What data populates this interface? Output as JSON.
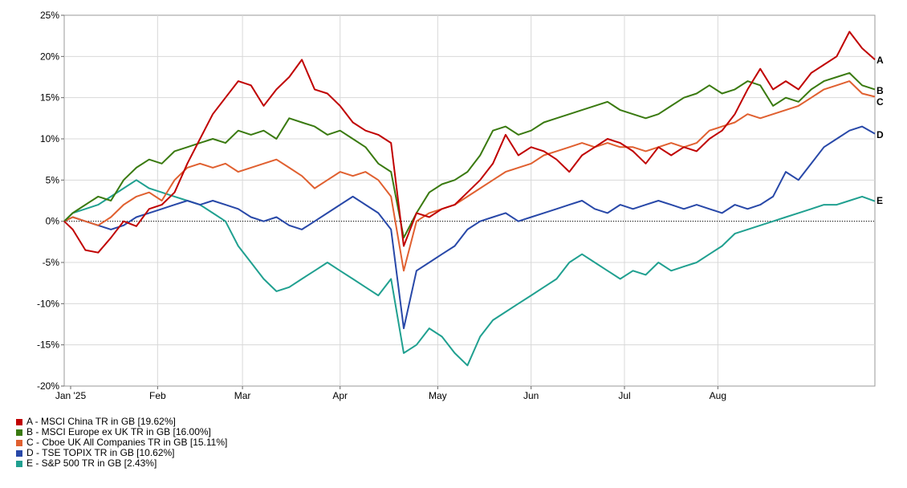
{
  "chart_data": {
    "type": "line",
    "title": "",
    "xlabel": "",
    "ylabel": "",
    "ylim": [
      -20,
      25
    ],
    "y_ticks": [
      "25%",
      "20%",
      "15%",
      "10%",
      "5%",
      "0%",
      "-5%",
      "-10%",
      "-15%",
      "-20%"
    ],
    "x_months": [
      "Jan '25",
      "Feb",
      "Mar",
      "Apr",
      "May",
      "Jun",
      "Jul",
      "Aug"
    ],
    "grid": true,
    "legend_position": "bottom-left",
    "series": [
      {
        "label": "A",
        "legend": "A - MSCI China TR in GB [19.62%]",
        "color": "#c00000",
        "points": [
          [
            0,
            0
          ],
          [
            2,
            -1
          ],
          [
            5,
            -3.5
          ],
          [
            8,
            -3.8
          ],
          [
            11,
            -2
          ],
          [
            14,
            0
          ],
          [
            17,
            -0.6
          ],
          [
            20,
            1.5
          ],
          [
            23,
            2
          ],
          [
            26,
            3.5
          ],
          [
            29,
            7
          ],
          [
            32,
            10
          ],
          [
            35,
            13
          ],
          [
            38,
            15
          ],
          [
            41,
            17
          ],
          [
            44,
            16.5
          ],
          [
            47,
            14
          ],
          [
            50,
            16
          ],
          [
            53,
            17.5
          ],
          [
            56,
            19.6
          ],
          [
            59,
            16
          ],
          [
            62,
            15.5
          ],
          [
            65,
            14
          ],
          [
            68,
            12
          ],
          [
            71,
            11
          ],
          [
            74,
            10.5
          ],
          [
            77,
            9.5
          ],
          [
            80,
            -3
          ],
          [
            83,
            1
          ],
          [
            86,
            0.5
          ],
          [
            89,
            1.5
          ],
          [
            92,
            2
          ],
          [
            95,
            3.5
          ],
          [
            98,
            5
          ],
          [
            101,
            7
          ],
          [
            104,
            10.5
          ],
          [
            107,
            8
          ],
          [
            110,
            9
          ],
          [
            113,
            8.5
          ],
          [
            116,
            7.5
          ],
          [
            119,
            6
          ],
          [
            122,
            8
          ],
          [
            125,
            9
          ],
          [
            128,
            10
          ],
          [
            131,
            9.5
          ],
          [
            134,
            8.5
          ],
          [
            137,
            7
          ],
          [
            140,
            9
          ],
          [
            143,
            8
          ],
          [
            146,
            9
          ],
          [
            149,
            8.5
          ],
          [
            152,
            10
          ],
          [
            155,
            11
          ],
          [
            158,
            13
          ],
          [
            161,
            16
          ],
          [
            164,
            18.5
          ],
          [
            167,
            16
          ],
          [
            170,
            17
          ],
          [
            173,
            16
          ],
          [
            176,
            18
          ],
          [
            179,
            19
          ],
          [
            182,
            20
          ],
          [
            185,
            23
          ],
          [
            188,
            21
          ],
          [
            191,
            19.62
          ]
        ]
      },
      {
        "label": "B",
        "legend": "B - MSCI Europe ex UK TR in GB [16.00%]",
        "color": "#3a7a10",
        "points": [
          [
            0,
            0
          ],
          [
            2,
            1
          ],
          [
            5,
            2
          ],
          [
            8,
            3
          ],
          [
            11,
            2.5
          ],
          [
            14,
            5
          ],
          [
            17,
            6.5
          ],
          [
            20,
            7.5
          ],
          [
            23,
            7
          ],
          [
            26,
            8.5
          ],
          [
            29,
            9
          ],
          [
            32,
            9.5
          ],
          [
            35,
            10
          ],
          [
            38,
            9.5
          ],
          [
            41,
            11
          ],
          [
            44,
            10.5
          ],
          [
            47,
            11
          ],
          [
            50,
            10
          ],
          [
            53,
            12.5
          ],
          [
            56,
            12
          ],
          [
            59,
            11.5
          ],
          [
            62,
            10.5
          ],
          [
            65,
            11
          ],
          [
            68,
            10
          ],
          [
            71,
            9
          ],
          [
            74,
            7
          ],
          [
            77,
            6
          ],
          [
            80,
            -2
          ],
          [
            83,
            1
          ],
          [
            86,
            3.5
          ],
          [
            89,
            4.5
          ],
          [
            92,
            5
          ],
          [
            95,
            6
          ],
          [
            98,
            8
          ],
          [
            101,
            11
          ],
          [
            104,
            11.5
          ],
          [
            107,
            10.5
          ],
          [
            110,
            11
          ],
          [
            113,
            12
          ],
          [
            116,
            12.5
          ],
          [
            119,
            13
          ],
          [
            122,
            13.5
          ],
          [
            125,
            14
          ],
          [
            128,
            14.5
          ],
          [
            131,
            13.5
          ],
          [
            134,
            13
          ],
          [
            137,
            12.5
          ],
          [
            140,
            13
          ],
          [
            143,
            14
          ],
          [
            146,
            15
          ],
          [
            149,
            15.5
          ],
          [
            152,
            16.5
          ],
          [
            155,
            15.5
          ],
          [
            158,
            16
          ],
          [
            161,
            17
          ],
          [
            164,
            16.5
          ],
          [
            167,
            14
          ],
          [
            170,
            15
          ],
          [
            173,
            14.5
          ],
          [
            176,
            16
          ],
          [
            179,
            17
          ],
          [
            182,
            17.5
          ],
          [
            185,
            18
          ],
          [
            188,
            16.5
          ],
          [
            191,
            16.0
          ]
        ]
      },
      {
        "label": "C",
        "legend": "C - Cboe UK All Companies TR in GB [15.11%]",
        "color": "#e06030",
        "points": [
          [
            0,
            0
          ],
          [
            2,
            0.5
          ],
          [
            5,
            0
          ],
          [
            8,
            -0.5
          ],
          [
            11,
            0.5
          ],
          [
            14,
            2
          ],
          [
            17,
            3
          ],
          [
            20,
            3.5
          ],
          [
            23,
            2.5
          ],
          [
            26,
            5
          ],
          [
            29,
            6.5
          ],
          [
            32,
            7
          ],
          [
            35,
            6.5
          ],
          [
            38,
            7
          ],
          [
            41,
            6
          ],
          [
            44,
            6.5
          ],
          [
            47,
            7
          ],
          [
            50,
            7.5
          ],
          [
            53,
            6.5
          ],
          [
            56,
            5.5
          ],
          [
            59,
            4
          ],
          [
            62,
            5
          ],
          [
            65,
            6
          ],
          [
            68,
            5.5
          ],
          [
            71,
            6
          ],
          [
            74,
            5
          ],
          [
            77,
            3
          ],
          [
            80,
            -6
          ],
          [
            83,
            0
          ],
          [
            86,
            1
          ],
          [
            89,
            1.5
          ],
          [
            92,
            2
          ],
          [
            95,
            3
          ],
          [
            98,
            4
          ],
          [
            101,
            5
          ],
          [
            104,
            6
          ],
          [
            107,
            6.5
          ],
          [
            110,
            7
          ],
          [
            113,
            8
          ],
          [
            116,
            8.5
          ],
          [
            119,
            9
          ],
          [
            122,
            9.5
          ],
          [
            125,
            9
          ],
          [
            128,
            9.5
          ],
          [
            131,
            9
          ],
          [
            134,
            9
          ],
          [
            137,
            8.5
          ],
          [
            140,
            9
          ],
          [
            143,
            9.5
          ],
          [
            146,
            9
          ],
          [
            149,
            9.5
          ],
          [
            152,
            11
          ],
          [
            155,
            11.5
          ],
          [
            158,
            12
          ],
          [
            161,
            13
          ],
          [
            164,
            12.5
          ],
          [
            167,
            13
          ],
          [
            170,
            13.5
          ],
          [
            173,
            14
          ],
          [
            176,
            15
          ],
          [
            179,
            16
          ],
          [
            182,
            16.5
          ],
          [
            185,
            17
          ],
          [
            188,
            15.5
          ],
          [
            191,
            15.11
          ]
        ]
      },
      {
        "label": "D",
        "legend": "D - TSE TOPIX TR in GB [10.62%]",
        "color": "#2848a8",
        "points": [
          [
            0,
            0
          ],
          [
            2,
            0.5
          ],
          [
            5,
            0
          ],
          [
            8,
            -0.5
          ],
          [
            11,
            -1
          ],
          [
            14,
            -0.5
          ],
          [
            17,
            0.5
          ],
          [
            20,
            1
          ],
          [
            23,
            1.5
          ],
          [
            26,
            2
          ],
          [
            29,
            2.5
          ],
          [
            32,
            2
          ],
          [
            35,
            2.5
          ],
          [
            38,
            2
          ],
          [
            41,
            1.5
          ],
          [
            44,
            0.5
          ],
          [
            47,
            0
          ],
          [
            50,
            0.5
          ],
          [
            53,
            -0.5
          ],
          [
            56,
            -1
          ],
          [
            59,
            0
          ],
          [
            62,
            1
          ],
          [
            65,
            2
          ],
          [
            68,
            3
          ],
          [
            71,
            2
          ],
          [
            74,
            1
          ],
          [
            77,
            -1
          ],
          [
            80,
            -13
          ],
          [
            83,
            -6
          ],
          [
            86,
            -5
          ],
          [
            89,
            -4
          ],
          [
            92,
            -3
          ],
          [
            95,
            -1
          ],
          [
            98,
            0
          ],
          [
            101,
            0.5
          ],
          [
            104,
            1
          ],
          [
            107,
            0
          ],
          [
            110,
            0.5
          ],
          [
            113,
            1
          ],
          [
            116,
            1.5
          ],
          [
            119,
            2
          ],
          [
            122,
            2.5
          ],
          [
            125,
            1.5
          ],
          [
            128,
            1
          ],
          [
            131,
            2
          ],
          [
            134,
            1.5
          ],
          [
            137,
            2
          ],
          [
            140,
            2.5
          ],
          [
            143,
            2
          ],
          [
            146,
            1.5
          ],
          [
            149,
            2
          ],
          [
            152,
            1.5
          ],
          [
            155,
            1
          ],
          [
            158,
            2
          ],
          [
            161,
            1.5
          ],
          [
            164,
            2
          ],
          [
            167,
            3
          ],
          [
            170,
            6
          ],
          [
            173,
            5
          ],
          [
            176,
            7
          ],
          [
            179,
            9
          ],
          [
            182,
            10
          ],
          [
            185,
            11
          ],
          [
            188,
            11.5
          ],
          [
            191,
            10.62
          ]
        ]
      },
      {
        "label": "E",
        "legend": "E - S&P 500 TR in GB [2.43%]",
        "color": "#20a090",
        "points": [
          [
            0,
            0
          ],
          [
            2,
            1
          ],
          [
            5,
            1.5
          ],
          [
            8,
            2
          ],
          [
            11,
            3
          ],
          [
            14,
            4
          ],
          [
            17,
            5
          ],
          [
            20,
            4
          ],
          [
            23,
            3.5
          ],
          [
            26,
            3
          ],
          [
            29,
            2.5
          ],
          [
            32,
            2
          ],
          [
            35,
            1
          ],
          [
            38,
            0
          ],
          [
            41,
            -3
          ],
          [
            44,
            -5
          ],
          [
            47,
            -7
          ],
          [
            50,
            -8.5
          ],
          [
            53,
            -8
          ],
          [
            56,
            -7
          ],
          [
            59,
            -6
          ],
          [
            62,
            -5
          ],
          [
            65,
            -6
          ],
          [
            68,
            -7
          ],
          [
            71,
            -8
          ],
          [
            74,
            -9
          ],
          [
            77,
            -7
          ],
          [
            80,
            -16
          ],
          [
            83,
            -15
          ],
          [
            86,
            -13
          ],
          [
            89,
            -14
          ],
          [
            92,
            -16
          ],
          [
            95,
            -17.5
          ],
          [
            98,
            -14
          ],
          [
            101,
            -12
          ],
          [
            104,
            -11
          ],
          [
            107,
            -10
          ],
          [
            110,
            -9
          ],
          [
            113,
            -8
          ],
          [
            116,
            -7
          ],
          [
            119,
            -5
          ],
          [
            122,
            -4
          ],
          [
            125,
            -5
          ],
          [
            128,
            -6
          ],
          [
            131,
            -7
          ],
          [
            134,
            -6
          ],
          [
            137,
            -6.5
          ],
          [
            140,
            -5
          ],
          [
            143,
            -6
          ],
          [
            146,
            -5.5
          ],
          [
            149,
            -5
          ],
          [
            152,
            -4
          ],
          [
            155,
            -3
          ],
          [
            158,
            -1.5
          ],
          [
            161,
            -1
          ],
          [
            164,
            -0.5
          ],
          [
            167,
            0
          ],
          [
            170,
            0.5
          ],
          [
            173,
            1
          ],
          [
            176,
            1.5
          ],
          [
            179,
            2
          ],
          [
            182,
            2
          ],
          [
            185,
            2.5
          ],
          [
            188,
            3
          ],
          [
            191,
            2.43
          ]
        ]
      }
    ]
  }
}
